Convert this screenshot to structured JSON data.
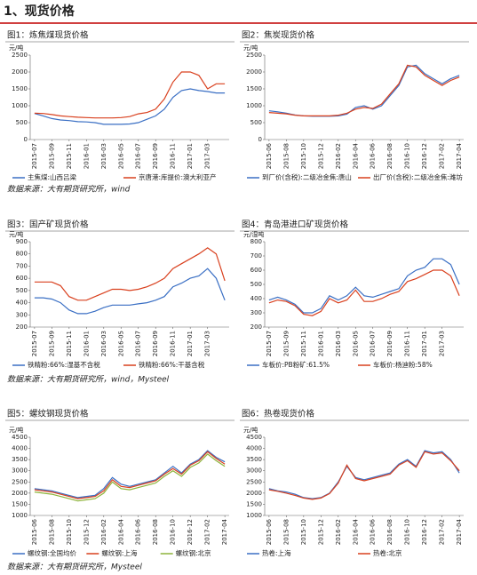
{
  "section_title": "1、现货价格",
  "chart_data": [
    {
      "type": "line",
      "title": "图1：炼焦煤现货价格",
      "y_label": "元/吨",
      "categories": [
        "2015-07",
        null,
        "2015-09",
        null,
        "2015-11",
        null,
        "2016-01",
        null,
        "2016-03",
        null,
        "2016-05",
        null,
        "2016-07",
        null,
        "2016-09",
        null,
        "2016-11",
        null,
        "2017-01",
        null,
        "2017-03",
        null,
        null
      ],
      "ylim": [
        0,
        2500
      ],
      "yticks": [
        0,
        500,
        1000,
        1500,
        2000,
        2500
      ],
      "series": [
        {
          "name": "主焦煤:山西吕梁",
          "color": "#3a6fc4",
          "values": [
            770,
            700,
            620,
            580,
            560,
            530,
            520,
            500,
            450,
            450,
            450,
            460,
            500,
            600,
            700,
            900,
            1250,
            1450,
            1500,
            1450,
            1420,
            1380,
            1380
          ]
        },
        {
          "name": "京唐港:库提价:澳大利亚产",
          "color": "#d9401e",
          "values": [
            780,
            770,
            740,
            700,
            680,
            660,
            650,
            640,
            640,
            640,
            650,
            680,
            760,
            800,
            900,
            1200,
            1700,
            2000,
            2000,
            1900,
            1500,
            1650,
            1650
          ]
        }
      ]
    },
    {
      "type": "line",
      "title": "图2：焦炭现货价格",
      "y_label": "元/吨",
      "categories": [
        "2015-06",
        null,
        "2015-08",
        null,
        "2015-10",
        null,
        "2015-12",
        null,
        "2016-02",
        null,
        "2016-04",
        null,
        "2016-06",
        null,
        "2016-08",
        null,
        "2016-10",
        null,
        "2016-12",
        null,
        "2017-02",
        null,
        "2017-04"
      ],
      "ylim": [
        0,
        2500
      ],
      "yticks": [
        0,
        500,
        1000,
        1500,
        2000,
        2500
      ],
      "series": [
        {
          "name": "到厂价(含税):二级冶金焦:唐山",
          "color": "#3a6fc4",
          "values": [
            850,
            820,
            780,
            730,
            700,
            690,
            690,
            690,
            700,
            750,
            950,
            1000,
            900,
            1000,
            1300,
            1600,
            2150,
            2200,
            1950,
            1800,
            1650,
            1800,
            1900
          ]
        },
        {
          "name": "出厂价(含税):二级冶金焦:潍坊",
          "color": "#d9401e",
          "values": [
            800,
            780,
            760,
            720,
            700,
            700,
            700,
            700,
            720,
            780,
            900,
            950,
            920,
            1050,
            1350,
            1650,
            2200,
            2150,
            1900,
            1750,
            1600,
            1750,
            1850
          ]
        }
      ]
    },
    {
      "type": "line",
      "title": "图3：国产矿现货价格",
      "y_label": "元/吨",
      "categories": [
        "2015-07",
        null,
        "2015-09",
        null,
        "2015-11",
        null,
        "2016-01",
        null,
        "2016-03",
        null,
        "2016-05",
        null,
        "2016-07",
        null,
        "2016-09",
        null,
        "2016-11",
        null,
        "2017-01",
        null,
        "2017-03",
        null,
        null
      ],
      "ylim": [
        200,
        900
      ],
      "yticks": [
        200,
        300,
        400,
        500,
        600,
        700,
        800,
        900
      ],
      "series": [
        {
          "name": "铁精粉:66%:湿基不含税",
          "color": "#3a6fc4",
          "values": [
            440,
            440,
            430,
            400,
            340,
            310,
            310,
            330,
            360,
            380,
            380,
            380,
            390,
            400,
            420,
            450,
            530,
            560,
            600,
            620,
            680,
            600,
            420
          ]
        },
        {
          "name": "铁精粉:66%:干基含税",
          "color": "#d9401e",
          "values": [
            570,
            570,
            570,
            540,
            450,
            420,
            420,
            450,
            480,
            510,
            510,
            500,
            510,
            530,
            560,
            600,
            680,
            720,
            760,
            800,
            850,
            800,
            580
          ]
        }
      ]
    },
    {
      "type": "line",
      "title": "图4：青岛港进口矿现货价格",
      "y_label": "元/湿吨",
      "categories": [
        "2015-07",
        null,
        "2015-09",
        null,
        "2015-11",
        null,
        "2016-01",
        null,
        "2016-03",
        null,
        "2016-05",
        null,
        "2016-07",
        null,
        "2016-09",
        null,
        "2016-11",
        null,
        "2017-01",
        null,
        "2017-03",
        null,
        null
      ],
      "ylim": [
        200,
        800
      ],
      "yticks": [
        200,
        300,
        400,
        500,
        600,
        700,
        800
      ],
      "series": [
        {
          "name": "车板价:PB粉矿:61.5%",
          "color": "#3a6fc4",
          "values": [
            390,
            410,
            390,
            360,
            300,
            300,
            330,
            420,
            390,
            420,
            480,
            420,
            410,
            430,
            450,
            470,
            560,
            600,
            620,
            680,
            680,
            640,
            500
          ]
        },
        {
          "name": "车板价:杨迪粉:58%",
          "color": "#d9401e",
          "values": [
            370,
            390,
            380,
            350,
            290,
            280,
            310,
            400,
            370,
            390,
            460,
            380,
            380,
            400,
            430,
            450,
            520,
            540,
            570,
            600,
            600,
            560,
            420
          ]
        }
      ]
    },
    {
      "type": "line",
      "title": "图5：螺纹钢现货价格",
      "y_label": "元/吨",
      "categories": [
        "2015-06",
        null,
        "2015-08",
        null,
        "2015-10",
        null,
        "2015-12",
        null,
        "2016-02",
        null,
        "2016-04",
        null,
        "2016-06",
        null,
        "2016-08",
        null,
        "2016-10",
        null,
        "2016-12",
        null,
        "2017-02",
        null,
        "2017-04"
      ],
      "ylim": [
        1000,
        4500
      ],
      "yticks": [
        1000,
        1500,
        2000,
        2500,
        3000,
        3500,
        4000,
        4500
      ],
      "series": [
        {
          "name": "螺纹钢:全国均价",
          "color": "#3a6fc4",
          "values": [
            2200,
            2150,
            2100,
            2000,
            1900,
            1800,
            1850,
            1900,
            2200,
            2700,
            2400,
            2300,
            2400,
            2500,
            2600,
            2900,
            3200,
            2900,
            3300,
            3500,
            3900,
            3600,
            3400
          ]
        },
        {
          "name": "螺纹钢:上海",
          "color": "#d9401e",
          "values": [
            2150,
            2100,
            2050,
            1950,
            1850,
            1750,
            1800,
            1850,
            2100,
            2600,
            2300,
            2250,
            2350,
            2450,
            2550,
            2850,
            3100,
            2850,
            3250,
            3450,
            3850,
            3550,
            3300
          ]
        },
        {
          "name": "螺纹钢:北京",
          "color": "#8db33a",
          "values": [
            2050,
            2000,
            1950,
            1850,
            1750,
            1650,
            1700,
            1750,
            2000,
            2500,
            2200,
            2150,
            2250,
            2350,
            2450,
            2750,
            3000,
            2750,
            3150,
            3350,
            3750,
            3450,
            3200
          ]
        }
      ]
    },
    {
      "type": "line",
      "title": "图6：热卷现货价格",
      "y_label": "元/吨",
      "categories": [
        "2015-06",
        null,
        "2015-08",
        null,
        "2015-10",
        null,
        "2015-12",
        null,
        "2016-02",
        null,
        "2016-04",
        null,
        "2016-06",
        null,
        "2016-08",
        null,
        "2016-10",
        null,
        "2016-12",
        null,
        "2017-02",
        null,
        "2017-04"
      ],
      "ylim": [
        1000,
        4500
      ],
      "yticks": [
        1000,
        1500,
        2000,
        2500,
        3000,
        3500,
        4000,
        4500
      ],
      "series": [
        {
          "name": "热卷:上海",
          "color": "#3a6fc4",
          "values": [
            2200,
            2100,
            2050,
            1950,
            1800,
            1750,
            1800,
            2000,
            2500,
            3200,
            2700,
            2600,
            2700,
            2800,
            2900,
            3300,
            3500,
            3200,
            3900,
            3800,
            3850,
            3500,
            2900
          ]
        },
        {
          "name": "热卷:北京",
          "color": "#d9401e",
          "values": [
            2150,
            2080,
            2000,
            1900,
            1780,
            1720,
            1780,
            1980,
            2450,
            3250,
            2650,
            2550,
            2650,
            2750,
            2850,
            3250,
            3450,
            3150,
            3850,
            3750,
            3800,
            3450,
            3000
          ]
        }
      ]
    }
  ],
  "sources": [
    "数据来源：大有期货研究所，wind",
    "数据来源：大有期货研究所，wind，Mysteel",
    "数据来源：大有期货研究所，Mysteel"
  ]
}
